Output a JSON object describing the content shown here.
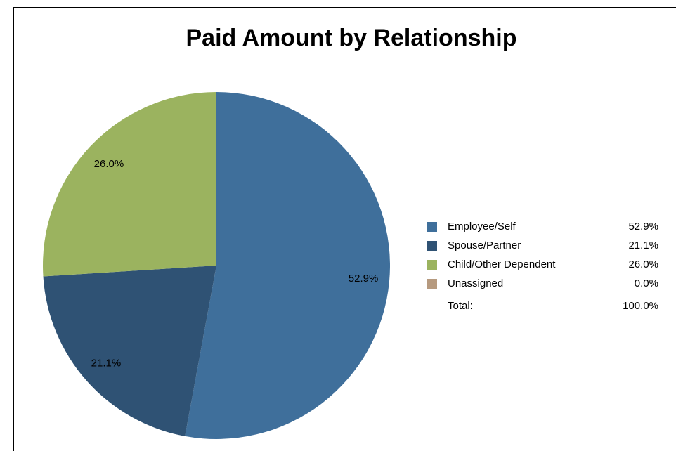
{
  "chart_data": {
    "type": "pie",
    "title": "Paid Amount by Relationship",
    "categories": [
      "Employee/Self",
      "Spouse/Partner",
      "Child/Other Dependent",
      "Unassigned"
    ],
    "values": [
      52.9,
      21.1,
      26.0,
      0.0
    ],
    "value_labels": [
      "52.9%",
      "21.1%",
      "26.0%",
      "0.0%"
    ],
    "colors": [
      "#3f6f9b",
      "#2f5274",
      "#9bb35f",
      "#b69a7f"
    ],
    "total": {
      "label": "Total:",
      "value": 100,
      "value_label": "100.0%"
    }
  }
}
